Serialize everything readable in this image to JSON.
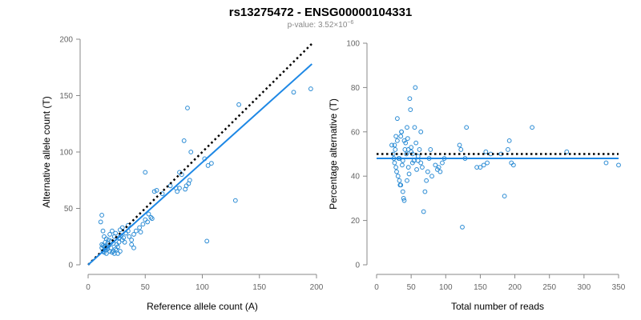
{
  "header": {
    "title": "rs13275472 - ENSG00000104331",
    "pvalue_prefix": "p-value: 3.52×10",
    "pvalue_exponent": "−6"
  },
  "colors": {
    "points": "#2a8bd4",
    "fit_line": "#1e88e5",
    "reference_line": "#000000",
    "axis": "#888888",
    "tick_text": "#666666"
  },
  "chart_data": [
    {
      "type": "scatter",
      "title": "",
      "xlabel": "Reference allele count (A)",
      "ylabel": "Alternative allele count (T)",
      "xlim": [
        0,
        200
      ],
      "ylim": [
        0,
        200
      ],
      "xticks": [
        0,
        50,
        100,
        150,
        200
      ],
      "yticks": [
        0,
        50,
        100,
        150,
        200
      ],
      "grid": false,
      "points": [
        [
          13,
          12
        ],
        [
          14,
          11
        ],
        [
          15,
          13
        ],
        [
          16,
          10
        ],
        [
          17,
          14
        ],
        [
          14,
          16
        ],
        [
          12,
          18
        ],
        [
          15,
          20
        ],
        [
          18,
          22
        ],
        [
          20,
          21
        ],
        [
          22,
          19
        ],
        [
          25,
          18
        ],
        [
          23,
          25
        ],
        [
          19,
          27
        ],
        [
          21,
          30
        ],
        [
          24,
          28
        ],
        [
          27,
          24
        ],
        [
          30,
          22
        ],
        [
          32,
          20
        ],
        [
          16,
          23
        ],
        [
          14,
          25
        ],
        [
          13,
          30
        ],
        [
          11,
          38
        ],
        [
          12,
          44
        ],
        [
          26,
          10
        ],
        [
          28,
          12
        ],
        [
          20,
          15
        ],
        [
          22,
          12
        ],
        [
          24,
          14
        ],
        [
          26,
          16
        ],
        [
          18,
          17
        ],
        [
          17,
          19
        ],
        [
          12,
          15
        ],
        [
          13,
          17
        ],
        [
          15,
          16
        ],
        [
          16,
          15
        ],
        [
          19,
          12
        ],
        [
          21,
          11
        ],
        [
          23,
          10
        ],
        [
          25,
          13
        ],
        [
          27,
          20
        ],
        [
          29,
          26
        ],
        [
          31,
          24
        ],
        [
          33,
          28
        ],
        [
          35,
          30
        ],
        [
          36,
          25
        ],
        [
          38,
          22
        ],
        [
          40,
          27
        ],
        [
          42,
          30
        ],
        [
          45,
          33
        ],
        [
          46,
          29
        ],
        [
          40,
          15
        ],
        [
          38,
          18
        ],
        [
          35,
          35
        ],
        [
          30,
          33
        ],
        [
          28,
          31
        ],
        [
          48,
          36
        ],
        [
          50,
          40
        ],
        [
          52,
          38
        ],
        [
          53,
          45
        ],
        [
          55,
          42
        ],
        [
          56,
          41
        ],
        [
          50,
          82
        ],
        [
          58,
          65
        ],
        [
          60,
          66
        ],
        [
          65,
          63
        ],
        [
          72,
          70
        ],
        [
          78,
          65
        ],
        [
          80,
          68
        ],
        [
          82,
          80
        ],
        [
          85,
          67
        ],
        [
          86,
          70
        ],
        [
          88,
          72
        ],
        [
          89,
          75
        ],
        [
          84,
          110
        ],
        [
          87,
          139
        ],
        [
          90,
          100
        ],
        [
          102,
          94
        ],
        [
          105,
          88
        ],
        [
          108,
          90
        ],
        [
          132,
          142
        ],
        [
          104,
          21
        ],
        [
          129,
          57
        ],
        [
          180,
          153
        ],
        [
          195,
          156
        ],
        [
          80,
          82
        ],
        [
          77,
          68
        ]
      ],
      "identity_line": {
        "slope": 1,
        "intercept": 0,
        "x_range": [
          0,
          196
        ]
      },
      "fit_line": {
        "x": [
          0,
          196
        ],
        "y": [
          0,
          178
        ]
      }
    },
    {
      "type": "scatter",
      "title": "",
      "xlabel": "Total number of reads",
      "ylabel": "Percentage alternative (T)",
      "xlim": [
        0,
        350
      ],
      "ylim": [
        0,
        100
      ],
      "xticks": [
        0,
        50,
        100,
        150,
        200,
        250,
        300,
        350
      ],
      "yticks": [
        0,
        20,
        40,
        60,
        80,
        100
      ],
      "grid": false,
      "points": [
        [
          22,
          54
        ],
        [
          24,
          50
        ],
        [
          25,
          48
        ],
        [
          26,
          46
        ],
        [
          27,
          52
        ],
        [
          28,
          44
        ],
        [
          29,
          42
        ],
        [
          30,
          56
        ],
        [
          31,
          40
        ],
        [
          32,
          48
        ],
        [
          33,
          38
        ],
        [
          34,
          36
        ],
        [
          35,
          58
        ],
        [
          36,
          60
        ],
        [
          37,
          45
        ],
        [
          38,
          47
        ],
        [
          39,
          30
        ],
        [
          40,
          29
        ],
        [
          41,
          52
        ],
        [
          42,
          55
        ],
        [
          43,
          50
        ],
        [
          44,
          62
        ],
        [
          45,
          57
        ],
        [
          46,
          44
        ],
        [
          47,
          41
        ],
        [
          48,
          75
        ],
        [
          49,
          70
        ],
        [
          50,
          53
        ],
        [
          52,
          50
        ],
        [
          54,
          47
        ],
        [
          55,
          62
        ],
        [
          56,
          80
        ],
        [
          57,
          55
        ],
        [
          58,
          43
        ],
        [
          60,
          49
        ],
        [
          62,
          52
        ],
        [
          64,
          46
        ],
        [
          66,
          44
        ],
        [
          68,
          24
        ],
        [
          70,
          33
        ],
        [
          72,
          38
        ],
        [
          74,
          42
        ],
        [
          76,
          48
        ],
        [
          78,
          52
        ],
        [
          80,
          40
        ],
        [
          85,
          45
        ],
        [
          88,
          43
        ],
        [
          90,
          44
        ],
        [
          92,
          42
        ],
        [
          95,
          46
        ],
        [
          98,
          48
        ],
        [
          120,
          54
        ],
        [
          122,
          52
        ],
        [
          124,
          17
        ],
        [
          130,
          62
        ],
        [
          128,
          48
        ],
        [
          145,
          44
        ],
        [
          150,
          44
        ],
        [
          155,
          45
        ],
        [
          158,
          51
        ],
        [
          160,
          46
        ],
        [
          165,
          50
        ],
        [
          180,
          50
        ],
        [
          185,
          31
        ],
        [
          190,
          52
        ],
        [
          192,
          56
        ],
        [
          195,
          46
        ],
        [
          198,
          45
        ],
        [
          225,
          62
        ],
        [
          275,
          51
        ],
        [
          332,
          46
        ],
        [
          350,
          45
        ],
        [
          35,
          36
        ],
        [
          38,
          33
        ],
        [
          44,
          38
        ],
        [
          50,
          51
        ],
        [
          60,
          47
        ],
        [
          30,
          66
        ],
        [
          26,
          54
        ],
        [
          28,
          58
        ],
        [
          33,
          48
        ],
        [
          36,
          60
        ],
        [
          40,
          56
        ],
        [
          46,
          52
        ],
        [
          52,
          46
        ],
        [
          64,
          60
        ]
      ],
      "reference_line": {
        "y": 50
      },
      "fit_line": {
        "y": 48
      }
    }
  ]
}
